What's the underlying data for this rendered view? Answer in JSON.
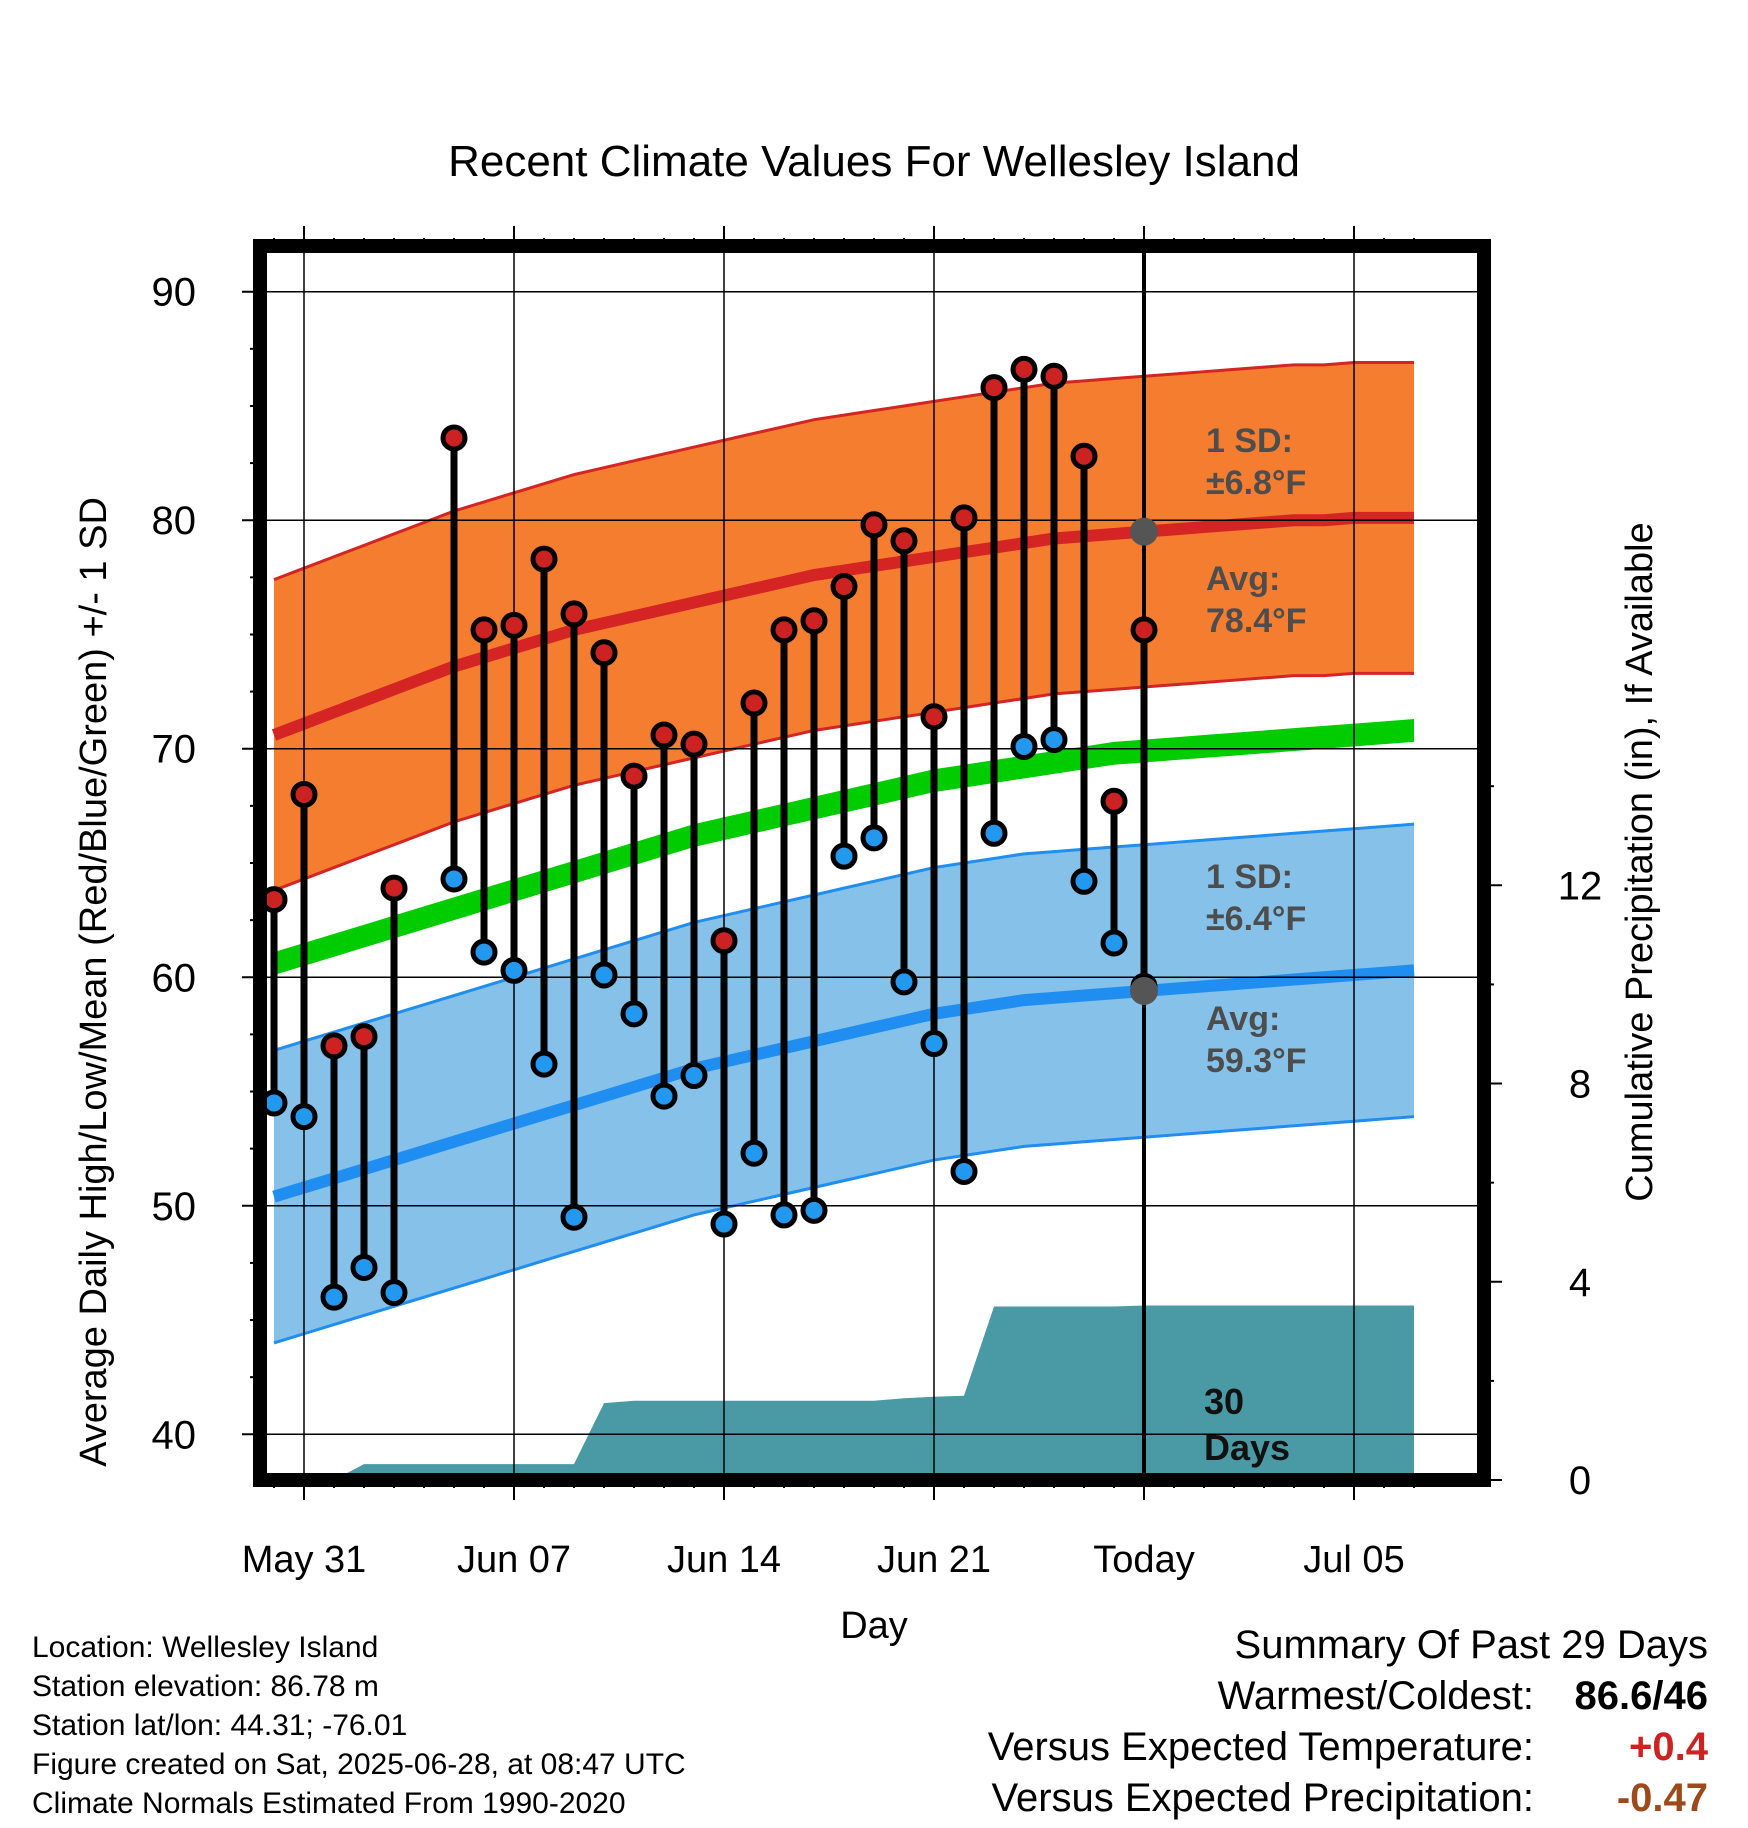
{
  "chart_data": {
    "type": "line",
    "title": "Recent Climate Values For Wellesley Island",
    "xlabel": "Day",
    "ylabel_left": "Average Daily High/Low/Mean (Red/Blue/Green) +/- 1 SD",
    "ylabel_right": "Cumulative Precipitation (in), If Available",
    "x_ticks": [
      "May 31",
      "Jun 07",
      "Jun 14",
      "Jun 21",
      "Today",
      "Jul 05"
    ],
    "y_left_ticks": [
      40,
      50,
      60,
      70,
      80,
      90
    ],
    "y_right_ticks": [
      0,
      4,
      8,
      12
    ],
    "ylim_left": [
      38,
      92
    ],
    "ylim_right": [
      0,
      24.9
    ],
    "grid": true,
    "dates": [
      "2025-05-30",
      "2025-05-31",
      "2025-06-01",
      "2025-06-02",
      "2025-06-03",
      "2025-06-04",
      "2025-06-05",
      "2025-06-06",
      "2025-06-07",
      "2025-06-08",
      "2025-06-09",
      "2025-06-10",
      "2025-06-11",
      "2025-06-12",
      "2025-06-13",
      "2025-06-14",
      "2025-06-15",
      "2025-06-16",
      "2025-06-17",
      "2025-06-18",
      "2025-06-19",
      "2025-06-20",
      "2025-06-21",
      "2025-06-22",
      "2025-06-23",
      "2025-06-24",
      "2025-06-25",
      "2025-06-26",
      "2025-06-27",
      "2025-06-28",
      "2025-06-29",
      "2025-06-30",
      "2025-07-01",
      "2025-07-02",
      "2025-07-03",
      "2025-07-04",
      "2025-07-05",
      "2025-07-06",
      "2025-07-07"
    ],
    "normals": {
      "avg_high": [
        70.6,
        71.1,
        71.6,
        72.1,
        72.6,
        73.1,
        73.6,
        74.0,
        74.4,
        74.8,
        75.2,
        75.5,
        75.8,
        76.1,
        76.4,
        76.7,
        77.0,
        77.3,
        77.6,
        77.8,
        78.0,
        78.2,
        78.4,
        78.6,
        78.8,
        79.0,
        79.2,
        79.3,
        79.4,
        79.5,
        79.6,
        79.7,
        79.8,
        79.9,
        80.0,
        80.0,
        80.1,
        80.1,
        80.1
      ],
      "high_sd": 6.8,
      "avg_low": [
        50.4,
        50.8,
        51.2,
        51.6,
        52.0,
        52.4,
        52.8,
        53.2,
        53.6,
        54.0,
        54.4,
        54.8,
        55.2,
        55.6,
        56.0,
        56.3,
        56.6,
        56.9,
        57.2,
        57.5,
        57.8,
        58.1,
        58.4,
        58.6,
        58.8,
        59.0,
        59.1,
        59.2,
        59.3,
        59.4,
        59.5,
        59.6,
        59.7,
        59.8,
        59.9,
        60.0,
        60.1,
        60.2,
        60.3
      ],
      "low_sd": 6.4,
      "avg_mean": [
        60.6,
        61.0,
        61.4,
        61.8,
        62.2,
        62.6,
        63.0,
        63.4,
        63.8,
        64.2,
        64.6,
        65.0,
        65.4,
        65.8,
        66.2,
        66.5,
        66.8,
        67.1,
        67.4,
        67.7,
        68.0,
        68.3,
        68.6,
        68.8,
        69.0,
        69.2,
        69.4,
        69.6,
        69.8,
        69.9,
        70.0,
        70.1,
        70.2,
        70.3,
        70.4,
        70.5,
        70.6,
        70.7,
        70.8
      ],
      "mean_band_half_width": 0.5
    },
    "observed_high": [
      63.4,
      68.0,
      57.0,
      57.4,
      63.9,
      null,
      83.6,
      75.2,
      75.4,
      78.3,
      75.9,
      74.2,
      68.8,
      70.6,
      70.2,
      61.6,
      72.0,
      75.2,
      75.6,
      77.1,
      79.8,
      79.1,
      71.4,
      80.1,
      85.8,
      86.6,
      86.3,
      82.8,
      67.7,
      75.2
    ],
    "observed_low": [
      54.5,
      53.9,
      46.0,
      47.3,
      46.2,
      null,
      64.3,
      61.1,
      60.3,
      56.2,
      49.5,
      60.1,
      58.4,
      54.8,
      55.7,
      49.2,
      52.3,
      49.6,
      49.8,
      65.3,
      66.1,
      59.8,
      57.1,
      51.5,
      66.3,
      70.1,
      70.4,
      64.2,
      61.5,
      59.6
    ],
    "cumulative_precip": [
      0.0,
      0.0,
      0.0,
      0.32,
      0.32,
      0.32,
      0.32,
      0.32,
      0.32,
      0.32,
      0.32,
      1.55,
      1.6,
      1.6,
      1.6,
      1.6,
      1.6,
      1.6,
      1.6,
      1.6,
      1.6,
      1.65,
      1.68,
      1.7,
      3.5,
      3.5,
      3.5,
      3.5,
      3.5,
      3.52,
      3.52,
      3.52,
      3.52,
      3.52,
      3.52,
      3.52,
      3.52,
      3.52,
      3.52
    ],
    "today_index": 29,
    "annotations": {
      "high_sd_label": "1 SD:",
      "high_sd_value": "±6.8°F",
      "high_avg_label": "Avg:",
      "high_avg_value": "78.4°F",
      "low_sd_label": "1 SD:",
      "low_sd_value": "±6.4°F",
      "low_avg_label": "Avg:",
      "low_avg_value": "59.3°F",
      "days_line1": "30",
      "days_line2": "Days"
    },
    "colors": {
      "high_band": "#f47d30",
      "high_line": "#d42424",
      "low_band": "#85c1e9",
      "low_line": "#1f8ef0",
      "mean_line": "#00cc00",
      "precip": "#4a9aa5",
      "high_point": "#cc2222",
      "low_point": "#2299ee",
      "marker": "#555555"
    }
  },
  "metadata": {
    "location": "Location: Wellesley Island",
    "elevation": "Station elevation: 86.78 m",
    "latlon": "Station lat/lon: 44.31; -76.01",
    "created": "Figure created on Sat, 2025-06-28, at 08:47 UTC",
    "normals": "Climate Normals Estimated From 1990-2020"
  },
  "summary": {
    "title": "Summary Of Past 29 Days",
    "warm_cold_label": "Warmest/Coldest:",
    "warm_cold_value": "86.6/46",
    "temp_label": "Versus Expected Temperature:",
    "temp_value": "+0.4",
    "temp_color": "#cc2222",
    "precip_label": "Versus Expected Precipitation:",
    "precip_value": "-0.47",
    "precip_color": "#9c4a1a"
  }
}
